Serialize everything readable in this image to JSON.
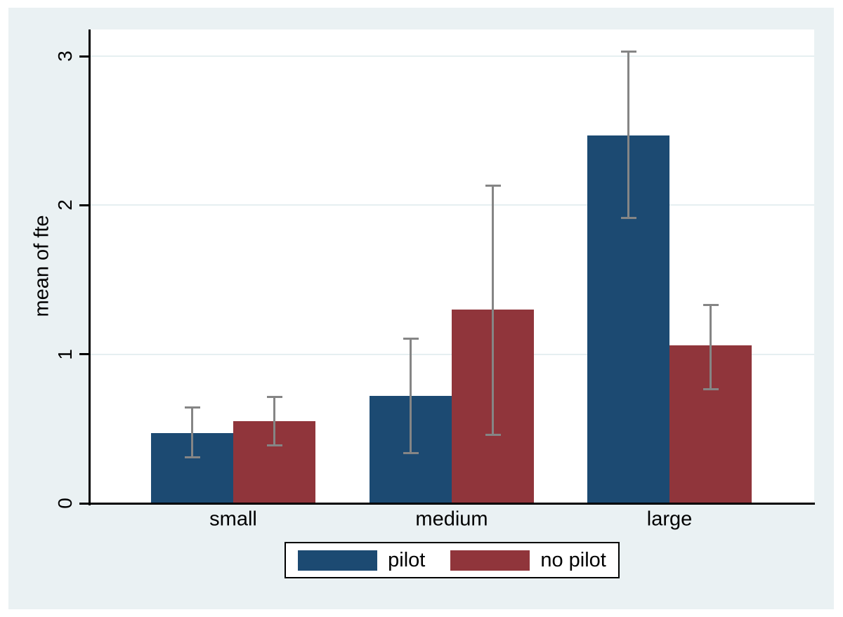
{
  "figure": {
    "background": "#ffffff",
    "region_background": "#eaf1f3",
    "plot_background": "#ffffff",
    "gridline_color": "#e6eff1",
    "axis_color": "#000000",
    "error_bar_color": "#858585"
  },
  "chart_data": {
    "type": "bar",
    "title": "",
    "categories": [
      "small",
      "medium",
      "large"
    ],
    "series": [
      {
        "name": "pilot",
        "color": "#1c4a72",
        "values": [
          0.47,
          0.72,
          2.47
        ],
        "ci_low": [
          0.3,
          0.33,
          1.91
        ],
        "ci_high": [
          0.65,
          1.11,
          3.04
        ]
      },
      {
        "name": "no pilot",
        "color": "#90353b",
        "values": [
          0.55,
          1.3,
          1.06
        ],
        "ci_low": [
          0.38,
          0.45,
          0.76
        ],
        "ci_high": [
          0.72,
          2.14,
          1.34
        ]
      }
    ],
    "xlabel": "",
    "ylabel": "mean of fte",
    "yticks": [
      0,
      1,
      2,
      3
    ],
    "ylim": [
      0,
      3.18
    ],
    "grid": true,
    "error_bars": true,
    "legend_position": "bottom-center"
  }
}
